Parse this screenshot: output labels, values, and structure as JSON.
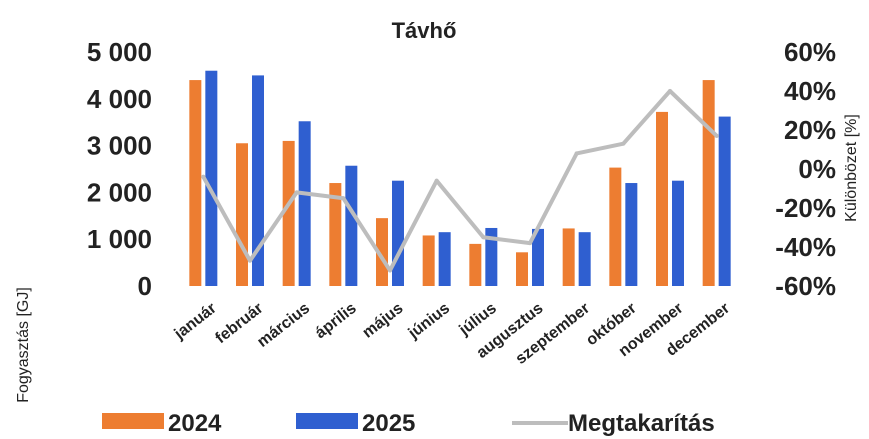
{
  "chart_data": {
    "type": "bar",
    "title": "Távhő",
    "ylabel": "Fogyasztás [GJ]",
    "y2label": "Különbözet [%]",
    "ylim": [
      0,
      5000
    ],
    "y2lim": [
      -60,
      60
    ],
    "yticks": [
      "0",
      "1 000",
      "2 000",
      "3 000",
      "4 000",
      "5 000"
    ],
    "y2ticks": [
      "-60%",
      "-40%",
      "-20%",
      "0%",
      "20%",
      "40%",
      "60%"
    ],
    "categories": [
      "január",
      "február",
      "március",
      "április",
      "május",
      "június",
      "július",
      "augusztus",
      "szeptember",
      "október",
      "november",
      "december"
    ],
    "series": [
      {
        "name": "2024",
        "kind": "bar",
        "color": "#ed7d31",
        "values": [
          4400,
          3050,
          3100,
          2200,
          1450,
          1080,
          900,
          720,
          1230,
          2530,
          3720,
          4400
        ]
      },
      {
        "name": "2025",
        "kind": "bar",
        "color": "#2f5fd0",
        "values": [
          4600,
          4500,
          3520,
          2570,
          2250,
          1150,
          1240,
          1220,
          1150,
          2200,
          2250,
          3620
        ]
      },
      {
        "name": "Megtakarítás",
        "kind": "line",
        "axis": "right",
        "color": "#bdbdbd",
        "values": [
          -4,
          -47,
          -12,
          -15,
          -52,
          -6,
          -35,
          -38,
          8,
          13,
          40,
          17
        ]
      }
    ],
    "legend_position": "bottom",
    "grid": false
  }
}
